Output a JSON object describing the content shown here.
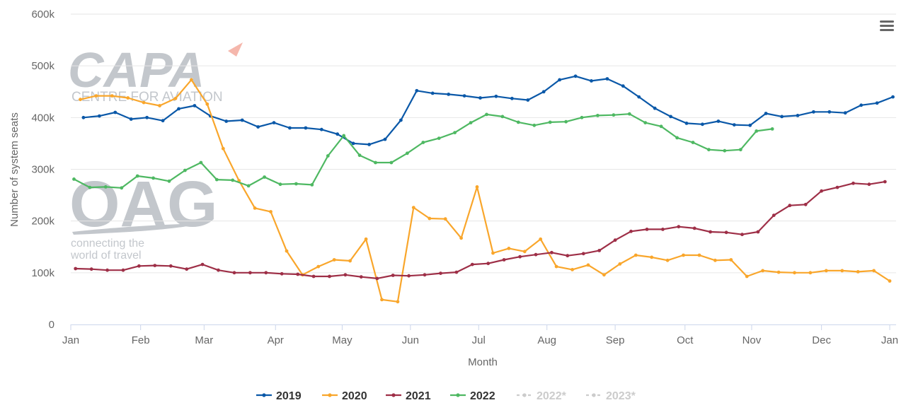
{
  "chart_data": {
    "type": "line",
    "title": "",
    "xlabel": "Month",
    "ylabel": "Number of system seats",
    "ylim": [
      0,
      600000
    ],
    "yticks": [
      0,
      100000,
      200000,
      300000,
      400000,
      500000,
      600000
    ],
    "ytick_labels": [
      "0",
      "100k",
      "200k",
      "300k",
      "400k",
      "500k",
      "600k"
    ],
    "x_unit": "week",
    "xlim": [
      0,
      52
    ],
    "xticks": [
      0,
      4.4,
      8.4,
      12.9,
      17.1,
      21.4,
      25.7,
      30.0,
      34.3,
      38.7,
      42.9,
      47.3,
      51.6
    ],
    "xtick_labels": [
      "Jan",
      "Feb",
      "Mar",
      "Apr",
      "May",
      "Jun",
      "Jul",
      "Aug",
      "Sep",
      "Oct",
      "Nov",
      "Dec",
      "Jan"
    ],
    "series": [
      {
        "name": "2019",
        "color": "#0a58a8",
        "start_week": 0.8,
        "values": [
          400000,
          403000,
          410000,
          397000,
          400000,
          394000,
          417000,
          423000,
          403000,
          393000,
          395000,
          382000,
          390000,
          380000,
          380000,
          377000,
          368000,
          350000,
          348000,
          358000,
          395000,
          452000,
          447000,
          445000,
          442000,
          438000,
          441000,
          437000,
          434000,
          450000,
          473000,
          480000,
          471000,
          475000,
          461000,
          440000,
          418000,
          402000,
          389000,
          387000,
          393000,
          386000,
          385000,
          408000,
          402000,
          404000,
          411000,
          411000,
          409000,
          424000,
          428000,
          440000
        ]
      },
      {
        "name": "2020",
        "color": "#f9a62b",
        "start_week": 0.6,
        "values": [
          435000,
          442000,
          442000,
          438000,
          429000,
          423000,
          437000,
          473000,
          426000,
          340000,
          278000,
          225000,
          218000,
          142000,
          96000,
          112000,
          125000,
          123000,
          165000,
          48000,
          44000,
          226000,
          205000,
          204000,
          167000,
          266000,
          138000,
          147000,
          141000,
          165000,
          112000,
          106000,
          115000,
          96000,
          117000,
          134000,
          130000,
          124000,
          134000,
          134000,
          124000,
          125000,
          93000,
          104000,
          101000,
          100000,
          100000,
          104000,
          104000,
          102000,
          104000,
          84000
        ]
      },
      {
        "name": "2021",
        "color": "#9e2f47",
        "start_week": 0.3,
        "values": [
          108000,
          107000,
          105000,
          105000,
          113000,
          114000,
          113000,
          107000,
          116000,
          105000,
          100000,
          100000,
          100000,
          98000,
          97000,
          93000,
          93000,
          96000,
          92000,
          89000,
          95000,
          94000,
          96000,
          99000,
          101000,
          116000,
          118000,
          125000,
          131000,
          135000,
          139000,
          133000,
          137000,
          143000,
          163000,
          180000,
          184000,
          184000,
          189000,
          186000,
          179000,
          178000,
          174000,
          179000,
          211000,
          230000,
          232000,
          258000,
          265000,
          273000,
          271000,
          276000
        ]
      },
      {
        "name": "2022",
        "color": "#4eb862",
        "start_week": 0.2,
        "values": [
          281000,
          265000,
          266000,
          264000,
          287000,
          283000,
          277000,
          298000,
          313000,
          280000,
          279000,
          268000,
          285000,
          271000,
          272000,
          270000,
          326000,
          365000,
          327000,
          313000,
          313000,
          331000,
          352000,
          360000,
          371000,
          390000,
          406000,
          402000,
          391000,
          385000,
          391000,
          392000,
          400000,
          404000,
          405000,
          407000,
          390000,
          383000,
          361000,
          352000,
          338000,
          336000,
          338000,
          374000,
          378000
        ]
      },
      {
        "name": "2022*",
        "color": "#cccccc",
        "start_week": 0,
        "values": []
      },
      {
        "name": "2023*",
        "color": "#cccccc",
        "start_week": 0,
        "values": []
      }
    ]
  },
  "watermarks": {
    "capa_main": "CAPA",
    "capa_sub": "CENTRE FOR AVIATION",
    "oag_main": "OAG",
    "oag_tag1": "connecting the",
    "oag_tag2": "world of travel"
  },
  "menu_icon": "hamburger-menu-icon"
}
